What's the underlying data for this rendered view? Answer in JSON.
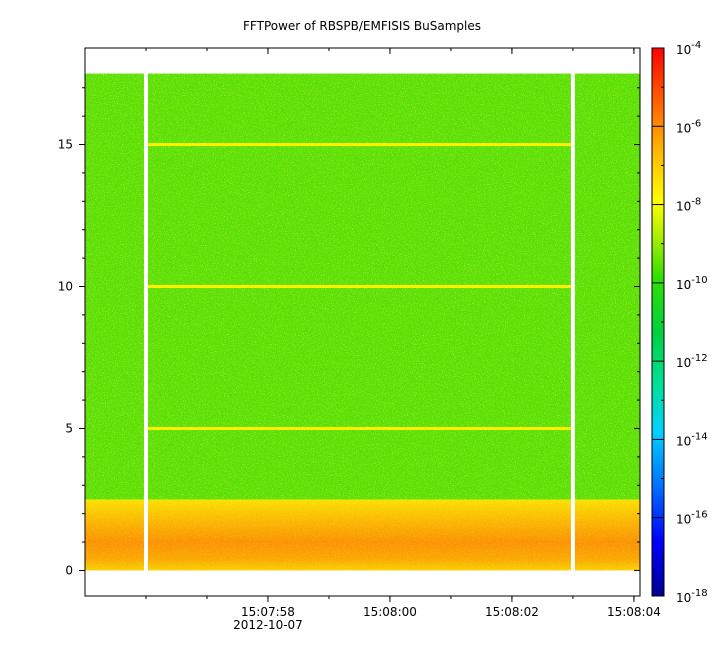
{
  "chart_data": {
    "type": "heatmap",
    "title": "FFTPower of RBSPB/EMFISIS  BuSamples",
    "xlabel": "",
    "ylabel": "",
    "x_ticks": [
      {
        "t": "15:07:58",
        "sub": "2012-10-07"
      },
      {
        "t": "15:08:00",
        "sub": ""
      },
      {
        "t": "15:08:02",
        "sub": ""
      },
      {
        "t": "15:08:04",
        "sub": ""
      }
    ],
    "x_range_seconds_after_15_07_55": [
      0.0,
      9.1
    ],
    "y_ticks": [
      0,
      5,
      10,
      15
    ],
    "ylim": [
      -0.9,
      18.4
    ],
    "data_y_range": [
      0,
      17.5
    ],
    "gaps_time": [
      "15:07:56",
      "15:08:03"
    ],
    "colorbar": {
      "scale": "log",
      "range": [
        1e-18,
        0.0001
      ],
      "tick_labels": [
        {
          "base": "10",
          "exp": "-4"
        },
        {
          "base": "10",
          "exp": "-6"
        },
        {
          "base": "10",
          "exp": "-8"
        },
        {
          "base": "10",
          "exp": "-10"
        },
        {
          "base": "10",
          "exp": "-12"
        },
        {
          "base": "10",
          "exp": "-14"
        },
        {
          "base": "10",
          "exp": "-16"
        },
        {
          "base": "10",
          "exp": "-18"
        }
      ],
      "colors": [
        "#0000a0",
        "#0000ff",
        "#00a0ff",
        "#00e0c0",
        "#00c040",
        "#20e000",
        "#80f000",
        "#ffff00",
        "#ffc000",
        "#ff6000",
        "#ff0000"
      ]
    },
    "spectrum_bands": [
      {
        "y_from": 0,
        "y_to": 2.5,
        "level": "1e-8 to 1e-7",
        "color": "#ffa000"
      },
      {
        "y_from": 2.5,
        "y_to": 17.5,
        "level": "~1e-10",
        "color": "#60e000"
      }
    ],
    "horizontal_lines_y": [
      5,
      10,
      15
    ],
    "grid": false,
    "legend": "colorbar-right"
  }
}
